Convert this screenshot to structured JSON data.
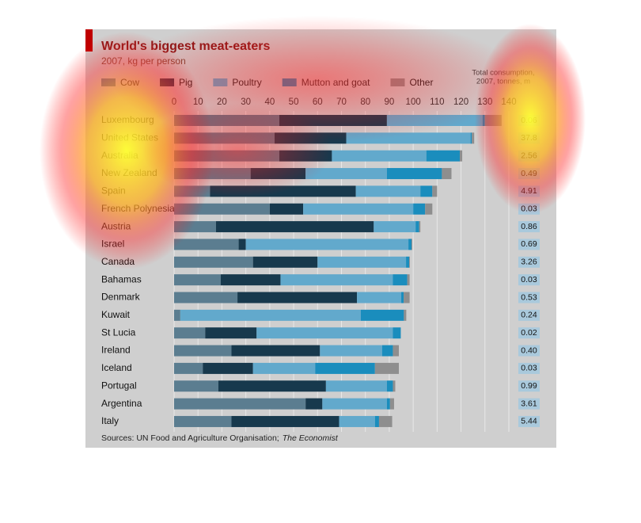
{
  "chart_data": {
    "type": "stacked-bar-horizontal",
    "title": "World's biggest meat-eaters",
    "subtitle": "2007, kg per person",
    "source": "Sources: UN Food and Agriculture Organisation;",
    "source_italic": "The Economist",
    "categories": [
      "Luxembourg",
      "United States",
      "Australia",
      "New Zealand",
      "Spain",
      "French Polynesia",
      "Austria",
      "Israel",
      "Canada",
      "Bahamas",
      "Denmark",
      "Kuwait",
      "St Lucia",
      "Ireland",
      "Iceland",
      "Portugal",
      "Argentina",
      "Italy"
    ],
    "series": [
      {
        "name": "Cow",
        "color": "#5b7d90",
        "values": [
          44,
          42,
          44,
          32,
          15,
          40,
          17.5,
          27,
          33,
          19.5,
          26.5,
          2.6,
          13,
          24,
          12,
          18.5,
          55,
          24
        ]
      },
      {
        "name": "Pig",
        "color": "#17394d",
        "values": [
          45,
          30,
          22,
          23,
          61,
          14,
          66,
          3,
          27,
          25,
          50,
          0,
          21.5,
          37,
          21,
          45,
          7,
          45
        ]
      },
      {
        "name": "Poultry",
        "color": "#62a9cc",
        "values": [
          40,
          52,
          39.5,
          34,
          27,
          46,
          17.5,
          68,
          37,
          47,
          18.5,
          75.5,
          57,
          26,
          26,
          25.5,
          27,
          15
        ]
      },
      {
        "name": "Mutton and goat",
        "color": "#1a8dbd",
        "values": [
          1,
          0.5,
          14,
          23,
          5,
          5,
          1.5,
          1.3,
          1.3,
          6,
          1,
          18,
          3.3,
          4.5,
          25,
          2.5,
          1.3,
          1.7
        ]
      },
      {
        "name": "Other",
        "color": "#8e8e8e",
        "values": [
          7,
          1,
          1,
          4,
          2,
          3,
          0.5,
          0.3,
          0.3,
          1,
          2.5,
          1,
          0,
          2.5,
          10,
          1,
          1.7,
          5.5
        ]
      }
    ],
    "xlim": [
      0,
      140
    ],
    "xticks": [
      0,
      10,
      20,
      30,
      40,
      50,
      60,
      70,
      80,
      90,
      100,
      110,
      120,
      130,
      140
    ],
    "grid": true,
    "total_consumption": {
      "header": [
        "Total consumption,",
        "2007, tonnes, m"
      ],
      "values": [
        0.06,
        37.8,
        2.56,
        0.49,
        4.91,
        0.03,
        0.86,
        0.69,
        3.26,
        0.03,
        0.53,
        0.24,
        0.02,
        0.4,
        0.03,
        0.99,
        3.61,
        5.44
      ],
      "value_labels": [
        "0.06",
        "37.8",
        "2.56",
        "0.49",
        "4.91",
        "0.03",
        "0.86",
        "0.69",
        "3.26",
        "0.03",
        "0.53",
        "0.24",
        "0.02",
        "0.40",
        "0.03",
        "0.99",
        "3.61",
        "5.44"
      ]
    }
  }
}
